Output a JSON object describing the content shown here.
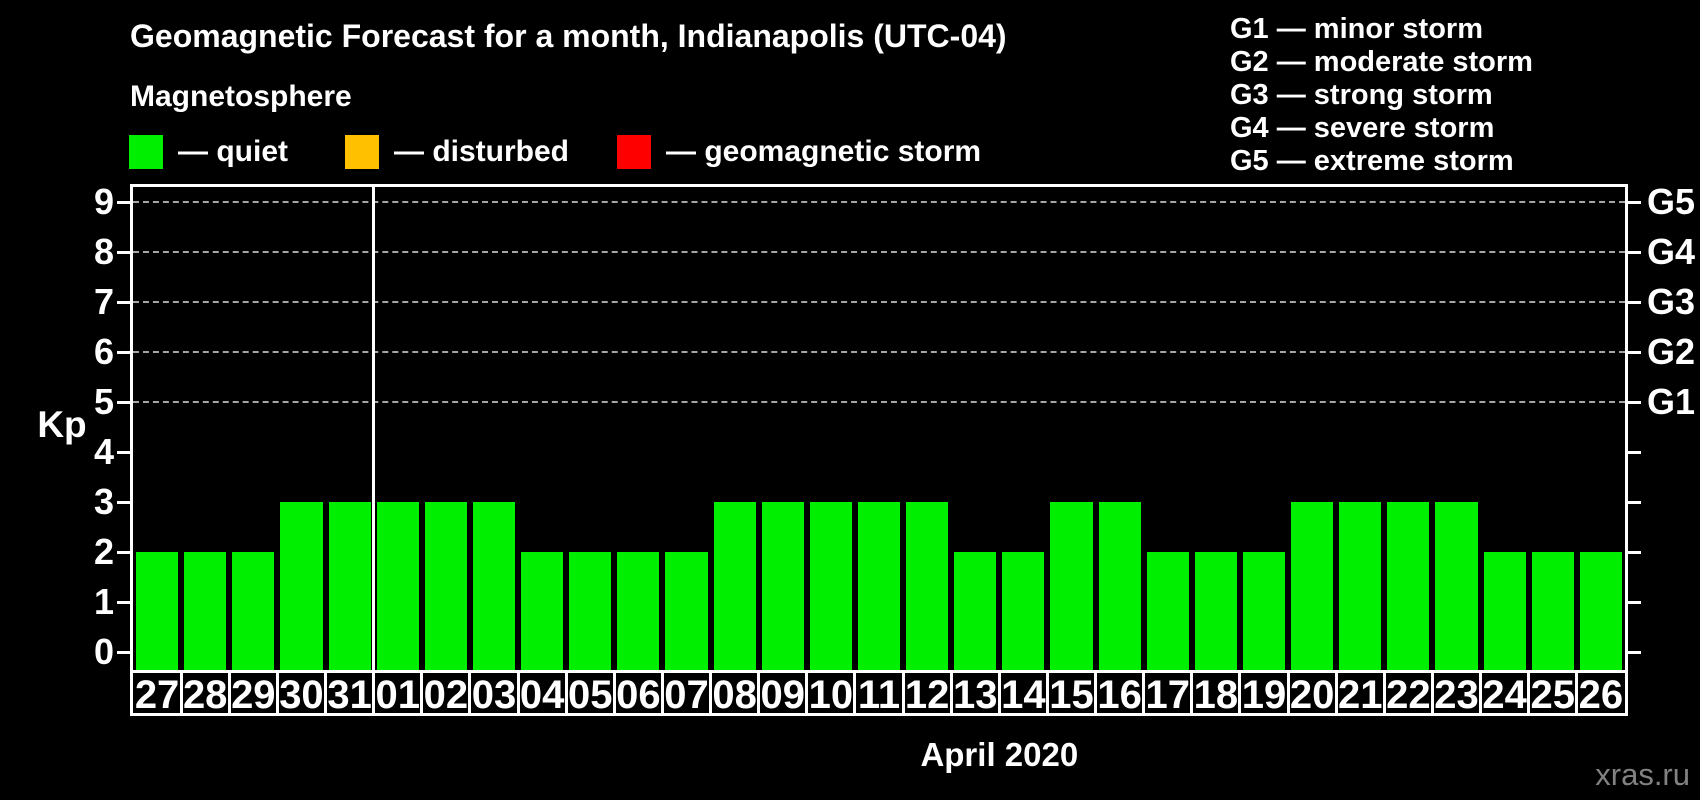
{
  "title": "Geomagnetic Forecast for a month, Indianapolis (UTC-04)",
  "subtitle": "Magnetosphere",
  "kp_legend": {
    "items": [
      {
        "name": "quiet",
        "label": "— quiet",
        "color": "#00ee00"
      },
      {
        "name": "disturbed",
        "label": "— disturbed",
        "color": "#ffc000"
      },
      {
        "name": "geomagnetic-storm",
        "label": "— geomagnetic storm",
        "color": "#ff0000"
      }
    ]
  },
  "storm_scale_legend": [
    "G1 — minor storm",
    "G2 — moderate storm",
    "G3 — strong storm",
    "G4 — severe storm",
    "G5 — extreme storm"
  ],
  "watermark": "xras.ru",
  "colors": {
    "background": "#000000",
    "axis": "#ffffff",
    "grid": "#a6a6a6",
    "quiet": "#00ee00",
    "disturbed": "#ffc000",
    "storm": "#ff0000",
    "watermark_text": "#828282"
  },
  "chart_data": {
    "type": "bar",
    "title": "Geomagnetic Forecast for a month, Indianapolis (UTC-04)",
    "ylabel": "Kp",
    "xlabel": "April 2020",
    "ylim": [
      0,
      9
    ],
    "yticks": [
      0,
      1,
      2,
      3,
      4,
      5,
      6,
      7,
      8,
      9
    ],
    "grid_levels": [
      5,
      6,
      7,
      8,
      9
    ],
    "right_axis_labels": [
      {
        "kp": 5,
        "label": "G1"
      },
      {
        "kp": 6,
        "label": "G2"
      },
      {
        "kp": 7,
        "label": "G3"
      },
      {
        "kp": 8,
        "label": "G4"
      },
      {
        "kp": 9,
        "label": "G5"
      }
    ],
    "categories": [
      "27",
      "28",
      "29",
      "30",
      "31",
      "01",
      "02",
      "03",
      "04",
      "05",
      "06",
      "07",
      "08",
      "09",
      "10",
      "11",
      "12",
      "13",
      "14",
      "15",
      "16",
      "17",
      "18",
      "19",
      "20",
      "21",
      "22",
      "23",
      "24",
      "25",
      "26"
    ],
    "values": [
      2,
      2,
      2,
      3,
      3,
      3,
      3,
      3,
      2,
      2,
      2,
      2,
      3,
      3,
      3,
      3,
      3,
      2,
      2,
      3,
      3,
      2,
      2,
      2,
      3,
      3,
      3,
      3,
      2,
      2,
      2
    ],
    "month_boundary_index": 5,
    "legend_position": "top-left",
    "grid": "dashed horizontal lines at storm levels only",
    "color_rule": {
      "quiet_max_kp": 3,
      "disturbed_kp": 4,
      "storm_min_kp": 5
    }
  }
}
